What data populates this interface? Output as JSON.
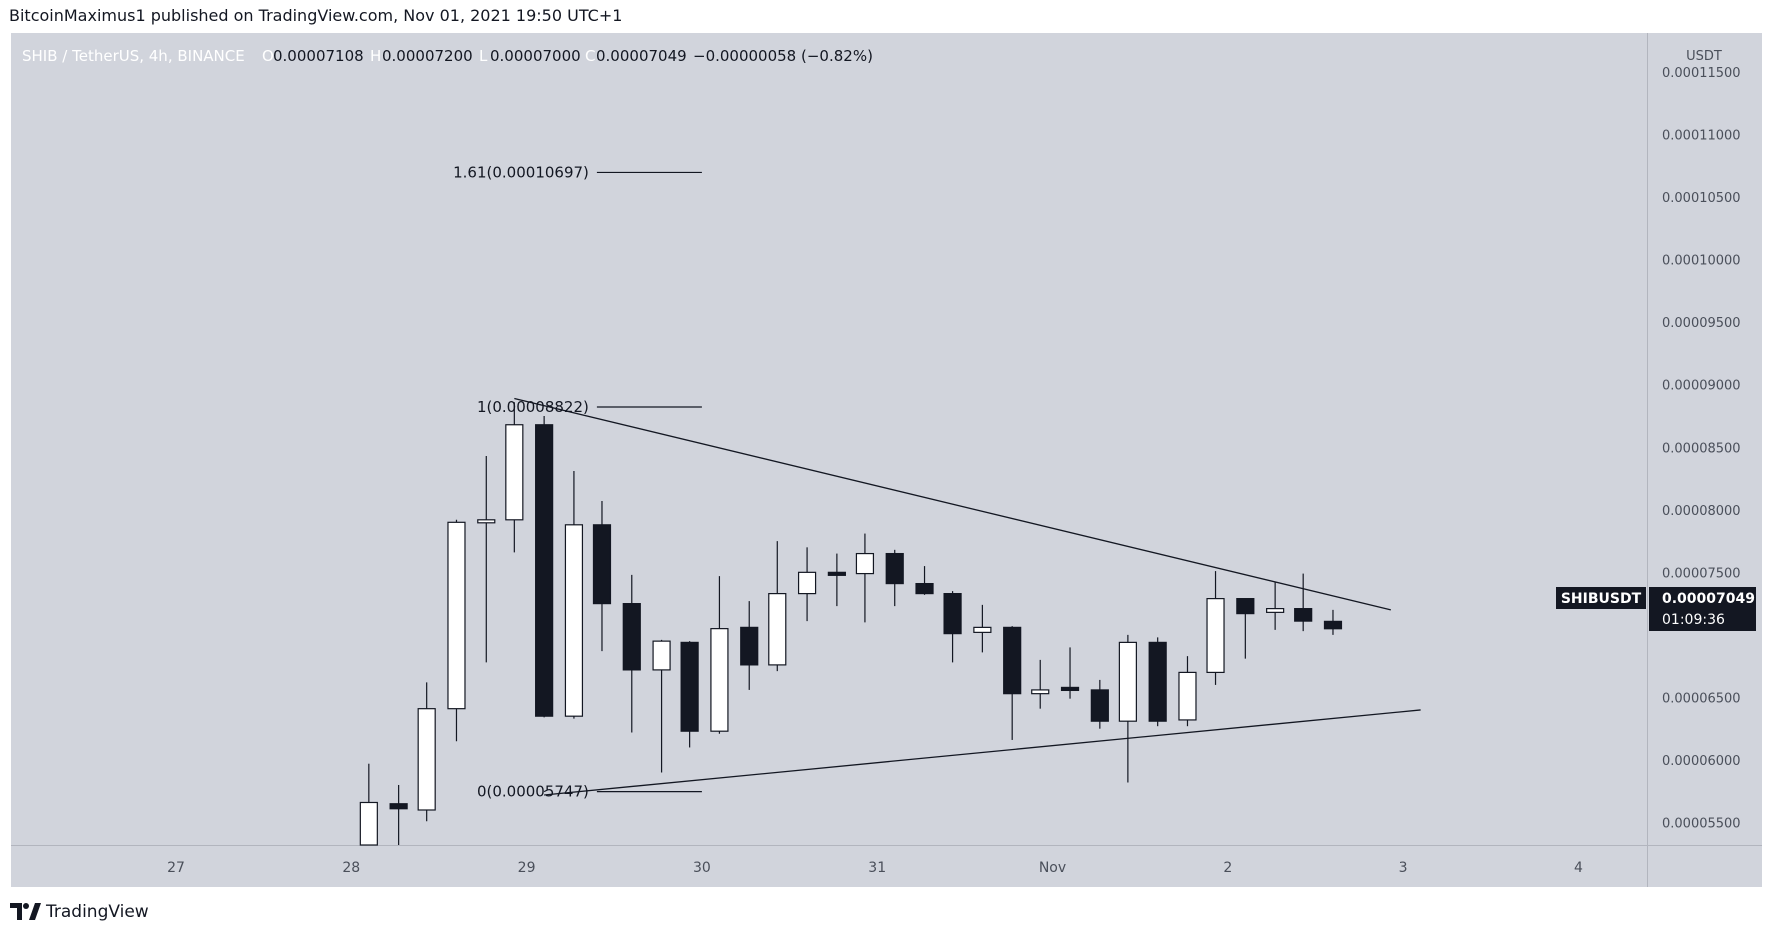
{
  "header": {
    "publish_line": "BitcoinMaximus1 published on TradingView.com, Nov 01, 2021 19:50 UTC+1"
  },
  "legend": {
    "symbol": "SHIB / TetherUS, 4h, BINANCE",
    "o_label": "O",
    "o_value": "0.00007108",
    "h_label": "H",
    "h_value": "0.00007200",
    "l_label": "L",
    "l_value": "0.00007000",
    "c_label": "C",
    "c_value": "0.00007049",
    "change": "−0.00000058 (−0.82%)"
  },
  "price_tag": {
    "symbol": "SHIBUSDT",
    "price": "0.00007049",
    "countdown": "01:09:36"
  },
  "brand": {
    "name": "TradingView",
    "logo_icon": "tradingview-logo-icon"
  },
  "chart_data": {
    "type": "candlestick",
    "axis_unit": "USDT",
    "ylim": [
      5.15e-05,
      0.000116
    ],
    "yticks": [
      {
        "value": 0.000115,
        "label": "0.00011500"
      },
      {
        "value": 0.00011,
        "label": "0.00011000"
      },
      {
        "value": 0.000105,
        "label": "0.00010500"
      },
      {
        "value": 0.0001,
        "label": "0.00010000"
      },
      {
        "value": 9.5e-05,
        "label": "0.00009500"
      },
      {
        "value": 9e-05,
        "label": "0.00009000"
      },
      {
        "value": 8.5e-05,
        "label": "0.00008500"
      },
      {
        "value": 8e-05,
        "label": "0.00008000"
      },
      {
        "value": 7.5e-05,
        "label": "0.00007500"
      },
      {
        "value": 6.5e-05,
        "label": "0.00006500"
      },
      {
        "value": 6e-05,
        "label": "0.00006000"
      },
      {
        "value": 5.5e-05,
        "label": "0.00005500"
      }
    ],
    "xlim": [
      25.0,
      35.3
    ],
    "xticks": [
      {
        "value": 26,
        "label": "27"
      },
      {
        "value": 27,
        "label": "28"
      },
      {
        "value": 28,
        "label": "29"
      },
      {
        "value": 29,
        "label": "30"
      },
      {
        "value": 30,
        "label": "31"
      },
      {
        "value": 31,
        "label": "Nov"
      },
      {
        "value": 32,
        "label": "2"
      },
      {
        "value": 33,
        "label": "3"
      },
      {
        "value": 34,
        "label": "4"
      }
    ],
    "candles": [
      {
        "t": 27.1,
        "o": 5.1e-05,
        "h": 5.97e-05,
        "l": 5.1e-05,
        "c": 5.66e-05
      },
      {
        "t": 27.27,
        "o": 5.65e-05,
        "h": 5.8e-05,
        "l": 5.1e-05,
        "c": 5.61e-05
      },
      {
        "t": 27.43,
        "o": 5.6e-05,
        "h": 6.62e-05,
        "l": 5.51e-05,
        "c": 6.41e-05
      },
      {
        "t": 27.6,
        "o": 6.41e-05,
        "h": 7.92e-05,
        "l": 6.15e-05,
        "c": 7.9e-05
      },
      {
        "t": 27.77,
        "o": 7.9e-05,
        "h": 8.43e-05,
        "l": 6.78e-05,
        "c": 7.92e-05
      },
      {
        "t": 27.93,
        "o": 7.92e-05,
        "h": 8.86e-05,
        "l": 7.66e-05,
        "c": 8.68e-05
      },
      {
        "t": 28.1,
        "o": 8.68e-05,
        "h": 8.75e-05,
        "l": 6.34e-05,
        "c": 6.35e-05
      },
      {
        "t": 28.27,
        "o": 6.35e-05,
        "h": 8.31e-05,
        "l": 6.33e-05,
        "c": 7.88e-05
      },
      {
        "t": 28.43,
        "o": 7.88e-05,
        "h": 8.07e-05,
        "l": 6.87e-05,
        "c": 7.25e-05
      },
      {
        "t": 28.6,
        "o": 7.25e-05,
        "h": 7.48e-05,
        "l": 6.22e-05,
        "c": 6.72e-05
      },
      {
        "t": 28.77,
        "o": 6.72e-05,
        "h": 6.96e-05,
        "l": 5.9e-05,
        "c": 6.95e-05
      },
      {
        "t": 28.93,
        "o": 6.94e-05,
        "h": 6.95e-05,
        "l": 6.1e-05,
        "c": 6.23e-05
      },
      {
        "t": 29.1,
        "o": 6.23e-05,
        "h": 7.47e-05,
        "l": 6.21e-05,
        "c": 7.05e-05
      },
      {
        "t": 29.27,
        "o": 7.06e-05,
        "h": 7.27e-05,
        "l": 6.56e-05,
        "c": 6.76e-05
      },
      {
        "t": 29.43,
        "o": 6.76e-05,
        "h": 7.75e-05,
        "l": 6.71e-05,
        "c": 7.33e-05
      },
      {
        "t": 29.6,
        "o": 7.33e-05,
        "h": 7.7e-05,
        "l": 7.11e-05,
        "c": 7.5e-05
      },
      {
        "t": 29.77,
        "o": 7.5e-05,
        "h": 7.65e-05,
        "l": 7.23e-05,
        "c": 7.49e-05
      },
      {
        "t": 29.93,
        "o": 7.49e-05,
        "h": 7.81e-05,
        "l": 7.1e-05,
        "c": 7.65e-05
      },
      {
        "t": 30.1,
        "o": 7.65e-05,
        "h": 7.68e-05,
        "l": 7.23e-05,
        "c": 7.41e-05
      },
      {
        "t": 30.27,
        "o": 7.41e-05,
        "h": 7.55e-05,
        "l": 7.32e-05,
        "c": 7.33e-05
      },
      {
        "t": 30.43,
        "o": 7.33e-05,
        "h": 7.35e-05,
        "l": 6.78e-05,
        "c": 7.01e-05
      },
      {
        "t": 30.6,
        "o": 7.02e-05,
        "h": 7.24e-05,
        "l": 6.86e-05,
        "c": 7.06e-05
      },
      {
        "t": 30.77,
        "o": 7.06e-05,
        "h": 7.07e-05,
        "l": 6.16e-05,
        "c": 6.53e-05
      },
      {
        "t": 30.93,
        "o": 6.53e-05,
        "h": 6.8e-05,
        "l": 6.41e-05,
        "c": 6.56e-05
      },
      {
        "t": 31.1,
        "o": 6.58e-05,
        "h": 6.9e-05,
        "l": 6.49e-05,
        "c": 6.56e-05
      },
      {
        "t": 31.27,
        "o": 6.56e-05,
        "h": 6.64e-05,
        "l": 6.25e-05,
        "c": 6.31e-05
      },
      {
        "t": 31.43,
        "o": 6.31e-05,
        "h": 7e-05,
        "l": 5.82e-05,
        "c": 6.94e-05
      },
      {
        "t": 31.6,
        "o": 6.94e-05,
        "h": 6.98e-05,
        "l": 6.27e-05,
        "c": 6.31e-05
      },
      {
        "t": 31.77,
        "o": 6.32e-05,
        "h": 6.83e-05,
        "l": 6.27e-05,
        "c": 6.7e-05
      },
      {
        "t": 31.93,
        "o": 6.7e-05,
        "h": 7.51e-05,
        "l": 6.6e-05,
        "c": 7.29e-05
      },
      {
        "t": 32.1,
        "o": 7.29e-05,
        "h": 7.29e-05,
        "l": 6.81e-05,
        "c": 7.17e-05
      },
      {
        "t": 32.27,
        "o": 7.18e-05,
        "h": 7.42e-05,
        "l": 7.04e-05,
        "c": 7.21e-05
      },
      {
        "t": 32.43,
        "o": 7.21e-05,
        "h": 7.49e-05,
        "l": 7.03e-05,
        "c": 7.11e-05
      },
      {
        "t": 32.6,
        "o": 7.108e-05,
        "h": 7.2e-05,
        "l": 7e-05,
        "c": 7.049e-05
      }
    ],
    "trendlines": [
      {
        "name": "descending-resistance",
        "t1": 27.93,
        "p1": 8.89e-05,
        "t2": 32.93,
        "p2": 7.2e-05
      },
      {
        "name": "ascending-support",
        "t1": 28.1,
        "p1": 5.72e-05,
        "t2": 33.1,
        "p2": 6.4e-05
      }
    ],
    "fib_start_t": 28.1,
    "fib_levels": [
      {
        "label": "1.61(0.00010697)",
        "value": 0.00010697,
        "t1": 28.4,
        "t2": 29.0
      },
      {
        "label": "1(0.00008822)",
        "value": 8.822e-05,
        "t1": 28.4,
        "t2": 29.0
      },
      {
        "label": "0(0.00005747)",
        "value": 5.747e-05,
        "t1": 28.1,
        "t2": 29.0
      }
    ],
    "last_price": 7.049e-05
  }
}
